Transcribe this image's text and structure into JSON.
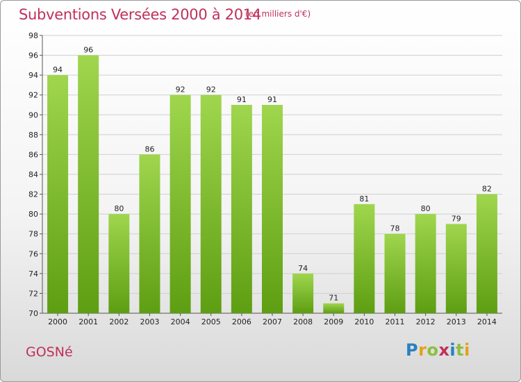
{
  "header": {
    "title": "Subventions Versées 2000 à 2014",
    "subtitle": "(en milliers d'€)"
  },
  "footer": {
    "commune": "GOSNé",
    "logo_letters": [
      {
        "ch": "P",
        "color": "#2a7fc0"
      },
      {
        "ch": "r",
        "color": "#e5a01a"
      },
      {
        "ch": "o",
        "color": "#8cbf3f"
      },
      {
        "ch": "x",
        "color": "#c0305a"
      },
      {
        "ch": "i",
        "color": "#2a7fc0"
      },
      {
        "ch": "t",
        "color": "#8cbf3f"
      },
      {
        "ch": "i",
        "color": "#e5a01a"
      }
    ]
  },
  "chart_data": {
    "type": "bar",
    "title": "Subventions Versées 2000 à 2014",
    "subtitle": "(en milliers d'€)",
    "categories": [
      "2000",
      "2001",
      "2002",
      "2003",
      "2004",
      "2005",
      "2006",
      "2007",
      "2008",
      "2009",
      "2010",
      "2011",
      "2012",
      "2013",
      "2014"
    ],
    "values": [
      94,
      96,
      80,
      86,
      92,
      92,
      91,
      91,
      74,
      71,
      81,
      78,
      80,
      79,
      82
    ],
    "ylim": [
      70,
      98
    ],
    "yticks": [
      70,
      72,
      74,
      76,
      78,
      80,
      82,
      84,
      86,
      88,
      90,
      92,
      94,
      96,
      98
    ],
    "grid": true,
    "bar_color_top": "#9fd64e",
    "bar_color_bottom": "#5e9e12"
  }
}
